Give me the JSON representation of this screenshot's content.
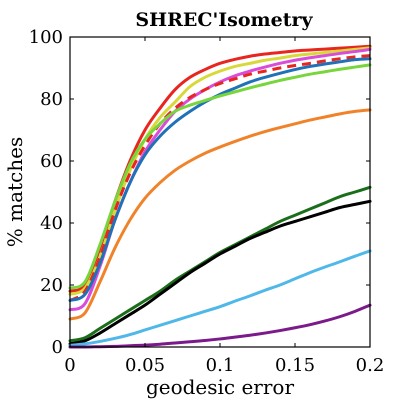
{
  "chart_data": {
    "type": "line",
    "title": "SHREC'Isometry",
    "xlabel": "geodesic error",
    "ylabel": "% matches",
    "xlim": [
      0,
      0.2
    ],
    "ylim": [
      0,
      100
    ],
    "xticks": [
      0,
      0.05,
      0.1,
      0.15,
      0.2
    ],
    "xtick_labels": [
      "0",
      "0.05",
      "0.1",
      "0.15",
      "0.2"
    ],
    "yticks": [
      0,
      20,
      40,
      60,
      80,
      100
    ],
    "ytick_labels": [
      "0",
      "20",
      "40",
      "60",
      "80",
      "100"
    ],
    "grid": false,
    "legend": "none",
    "x": [
      0,
      0.01,
      0.02,
      0.03,
      0.04,
      0.05,
      0.06,
      0.07,
      0.08,
      0.09,
      0.1,
      0.11,
      0.12,
      0.13,
      0.14,
      0.15,
      0.16,
      0.17,
      0.18,
      0.19,
      0.2
    ],
    "series": [
      {
        "color": "#e8251f",
        "dash": false,
        "values": [
          18,
          20,
          32,
          47,
          60,
          70,
          77,
          83,
          87,
          89.5,
          91.5,
          92.8,
          93.8,
          94.5,
          95,
          95.5,
          95.8,
          96.1,
          96.4,
          96.7,
          97
        ]
      },
      {
        "color": "#d8d83a",
        "dash": false,
        "values": [
          17,
          19,
          29,
          44,
          57,
          67,
          74,
          79,
          84,
          87,
          89,
          90.5,
          91.5,
          92.5,
          93.2,
          94,
          94.5,
          95,
          95.5,
          96,
          96.5
        ]
      },
      {
        "color": "#d94cd9",
        "dash": false,
        "values": [
          12,
          14,
          26,
          41,
          53,
          63,
          70,
          76,
          80,
          83,
          85.5,
          87.5,
          89,
          90.3,
          91.5,
          92.5,
          93.3,
          94,
          94.7,
          95.3,
          96
        ]
      },
      {
        "color": "#e8251f",
        "dash": true,
        "values": [
          15,
          18,
          29,
          44,
          56,
          65,
          72,
          77,
          80.5,
          83,
          85,
          86.5,
          88,
          89,
          90,
          90.8,
          91.5,
          92.3,
          93,
          93.6,
          94
        ]
      },
      {
        "color": "#1f72b8",
        "dash": false,
        "values": [
          15,
          17,
          27,
          41,
          53,
          62,
          68,
          72.5,
          76,
          79,
          81.5,
          83.5,
          85.5,
          87,
          88.3,
          89.5,
          90.5,
          91.3,
          92,
          92.7,
          93
        ]
      },
      {
        "color": "#77d63c",
        "dash": false,
        "values": [
          19,
          21,
          33,
          47,
          59,
          67,
          72,
          76,
          78,
          79.5,
          81,
          82.3,
          83.6,
          84.8,
          86,
          87,
          88,
          88.8,
          89.6,
          90.3,
          91
        ]
      },
      {
        "color": "#f0832a",
        "dash": false,
        "values": [
          9,
          11,
          21,
          32,
          41,
          48,
          53,
          57,
          60,
          62.5,
          64.5,
          66.3,
          68,
          69.5,
          70.8,
          72,
          73.2,
          74.2,
          75.2,
          76,
          76.5
        ]
      },
      {
        "color": "#1a6e1a",
        "dash": false,
        "values": [
          2,
          3,
          6,
          9,
          12,
          15,
          18,
          21.5,
          24.5,
          27.5,
          30.5,
          33,
          35.5,
          38,
          40.5,
          42.5,
          44.5,
          46.5,
          48.5,
          50,
          51.5
        ]
      },
      {
        "color": "#000000",
        "dash": false,
        "values": [
          1,
          2,
          4.5,
          7.5,
          10.5,
          13.5,
          17,
          20.5,
          24,
          27,
          30,
          32.5,
          35,
          37,
          39,
          40.5,
          42,
          43.5,
          45,
          46,
          47
        ]
      },
      {
        "color": "#4fb8e8",
        "dash": false,
        "values": [
          0.5,
          1,
          1.8,
          2.8,
          4,
          5.5,
          7,
          8.5,
          10,
          11.5,
          13,
          14.8,
          16.5,
          18.3,
          20,
          22,
          24,
          25.8,
          27.5,
          29.3,
          31
        ]
      },
      {
        "color": "#7b1a8a",
        "dash": false,
        "values": [
          0,
          0,
          0.1,
          0.2,
          0.4,
          0.6,
          0.9,
          1.3,
          1.7,
          2.1,
          2.6,
          3.2,
          3.8,
          4.5,
          5.3,
          6.2,
          7.2,
          8.4,
          9.8,
          11.5,
          13.5
        ]
      }
    ]
  }
}
